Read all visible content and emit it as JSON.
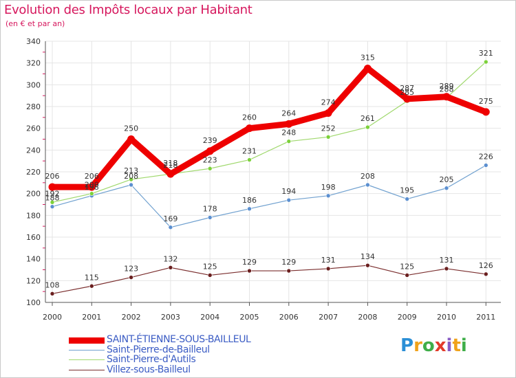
{
  "title": "Evolution des Impôts locaux par Habitant",
  "subtitle": "(en € et par an)",
  "brand": {
    "letters": [
      "P",
      "r",
      "o",
      "x",
      "i",
      "t",
      "i"
    ],
    "colors": [
      "#2b8fd6",
      "#f0a21a",
      "#3fae49",
      "#e23b2a",
      "#8a5cc4",
      "#f0a21a",
      "#3fae49"
    ]
  },
  "chart_data": {
    "type": "line",
    "title": "Evolution des Impôts locaux par Habitant",
    "subtitle": "(en € et par an)",
    "xlabel": "",
    "ylabel": "",
    "categories": [
      "2000",
      "2001",
      "2002",
      "2003",
      "2004",
      "2005",
      "2006",
      "2007",
      "2008",
      "2009",
      "2010",
      "2011"
    ],
    "ylim": [
      100,
      340
    ],
    "yticks": [
      100,
      120,
      140,
      160,
      180,
      200,
      220,
      240,
      260,
      280,
      300,
      320,
      340
    ],
    "legend_position": "bottom-left",
    "series": [
      {
        "name": "SAINT-ÉTIENNE-SOUS-BAILLEUL",
        "color": "#ee0000",
        "values": [
          206,
          206,
          250,
          218,
          239,
          260,
          264,
          274,
          315,
          287,
          289,
          275
        ]
      },
      {
        "name": "Saint-Pierre-de-Bailleul",
        "color": "#6fa0cf",
        "values": [
          188,
          198,
          208,
          169,
          178,
          186,
          194,
          198,
          208,
          195,
          205,
          226
        ]
      },
      {
        "name": "Saint-Pierre-d'Autils",
        "color": "#9fd86c",
        "values": [
          192,
          200,
          213,
          218,
          223,
          231,
          248,
          252,
          261,
          285,
          288,
          321
        ]
      },
      {
        "name": "Villez-sous-Bailleul",
        "color": "#7a2d2d",
        "values": [
          108,
          115,
          123,
          132,
          125,
          129,
          129,
          131,
          134,
          125,
          131,
          126
        ]
      }
    ]
  }
}
